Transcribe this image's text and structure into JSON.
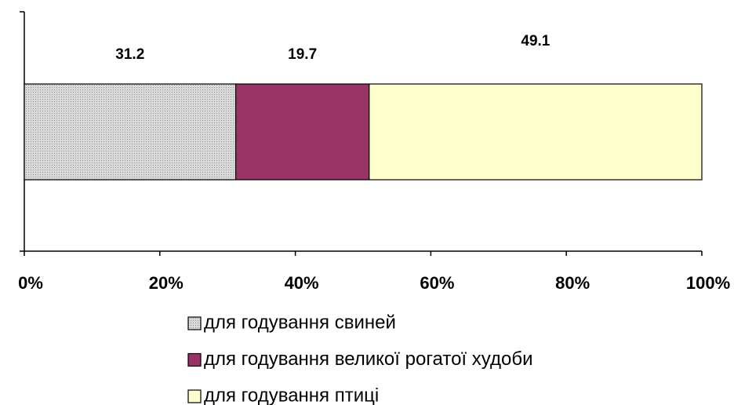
{
  "chart_data": {
    "type": "stacked_barh",
    "categories": [
      null
    ],
    "series": [
      {
        "name": "для годування свиней",
        "color": "#c8c8c8",
        "values": [
          31.2
        ]
      },
      {
        "name": "для годування великої рогатої худоби",
        "color": "#993366",
        "values": [
          19.7
        ]
      },
      {
        "name": "для годування птиці",
        "color": "#ffffcc",
        "values": [
          49.1
        ]
      }
    ],
    "xlim": [
      0,
      100
    ],
    "xticks": [
      {
        "value": 0,
        "label": "0%"
      },
      {
        "value": 20,
        "label": "20%"
      },
      {
        "value": 40,
        "label": "40%"
      },
      {
        "value": 60,
        "label": "60%"
      },
      {
        "value": 80,
        "label": "80%"
      },
      {
        "value": 100,
        "label": "100%"
      }
    ],
    "legend": "bottom"
  }
}
